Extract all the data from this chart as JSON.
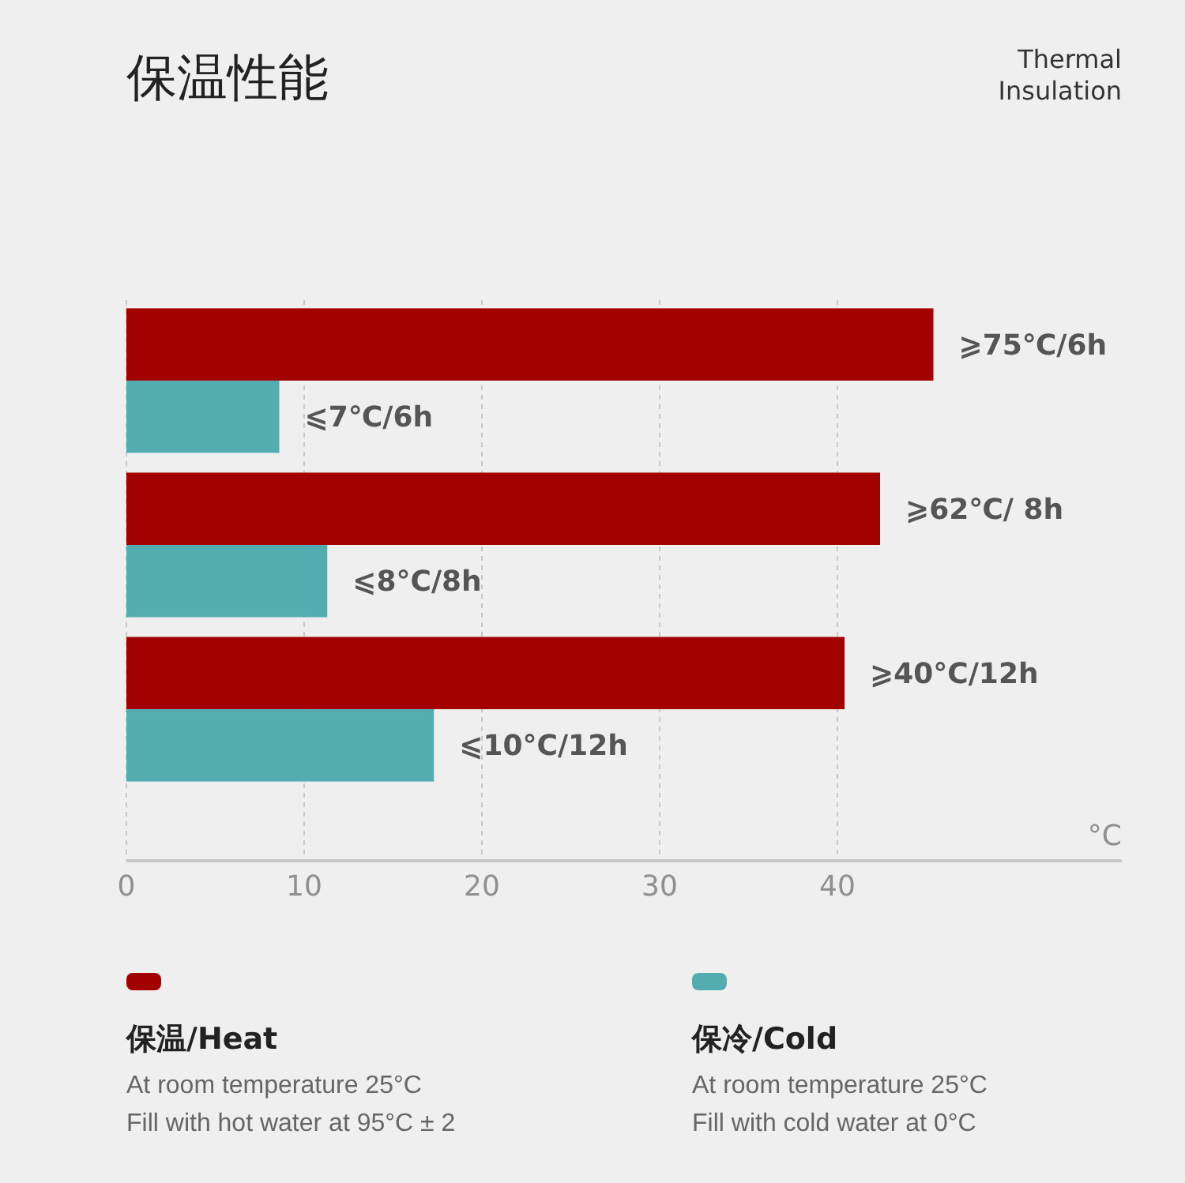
{
  "chart_data": {
    "type": "bar",
    "orientation": "horizontal",
    "title": "保温性能",
    "subtitle": "Thermal\nInsulation",
    "xlabel": "°C",
    "categories": [
      null,
      null,
      null
    ],
    "series": [
      {
        "name": "保温/Heat",
        "color": "#a30000",
        "values": [
          45.4,
          42.4,
          40.4
        ],
        "value_labels": [
          "⩾75℃/6h",
          "⩾62℃/ 8h",
          "⩾40°C/12h"
        ]
      },
      {
        "name": "保冷/Cold",
        "color": "#53adb0",
        "values": [
          8.6,
          11.3,
          17.3
        ],
        "value_labels": [
          "⩽7℃/6h",
          "⩽8°C/8h",
          "⩽10°C/12h"
        ]
      }
    ],
    "xlim": [
      0,
      56
    ],
    "xticks": [
      0,
      10,
      20,
      30,
      40
    ],
    "grid": "x",
    "legend": "bottom",
    "annotations": [
      "At room temperature 25°C",
      "Fill with hot water at 95°C ± 2",
      "At room temperature 25°C",
      "Fill with cold water at 0°C"
    ]
  }
}
